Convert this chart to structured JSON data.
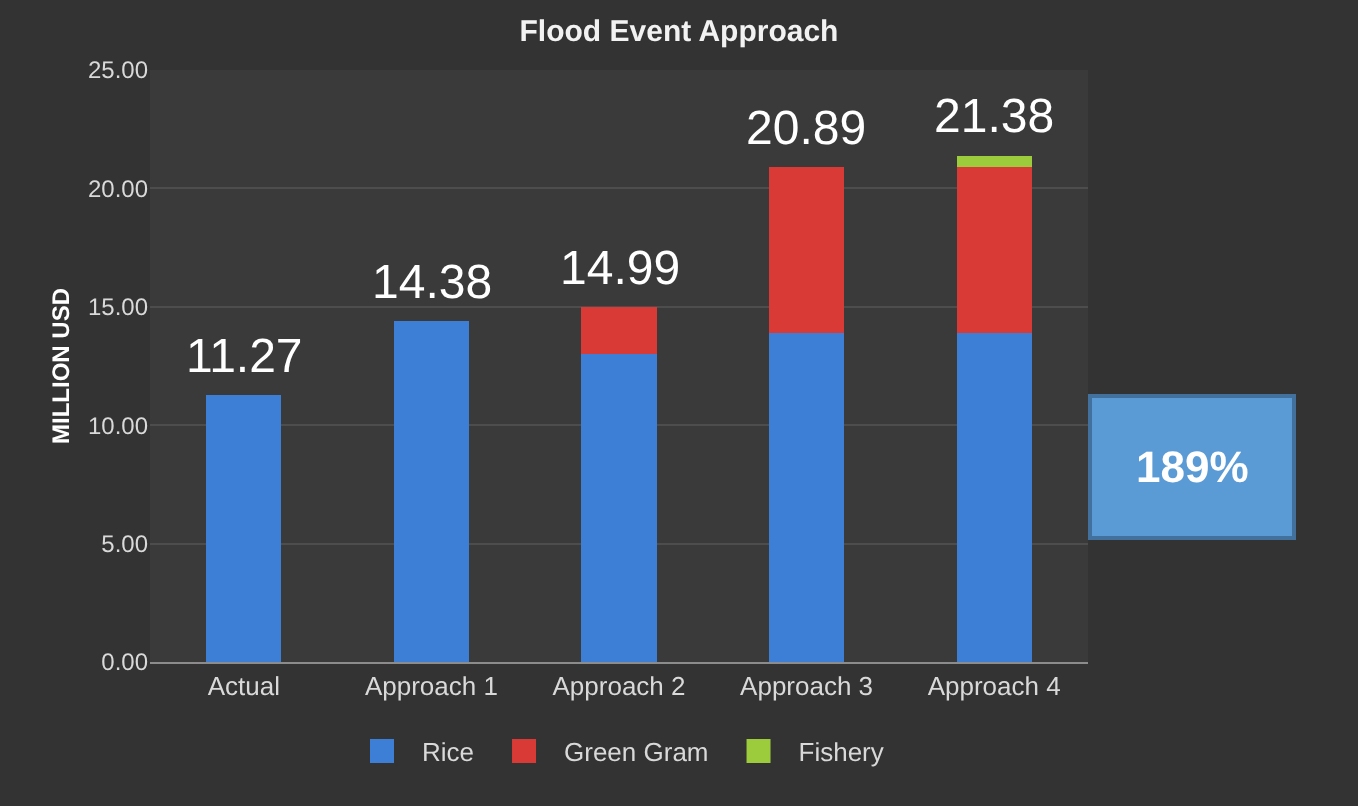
{
  "chart_data": {
    "type": "bar",
    "title": "Flood Event Approach",
    "ylabel": "MILLION USD",
    "categories": [
      "Actual",
      "Approach 1",
      "Approach 2",
      "Approach 3",
      "Approach 4"
    ],
    "stacked": true,
    "series": [
      {
        "name": "Rice",
        "color": "#3d7fd6",
        "values": [
          11.27,
          14.38,
          13.0,
          13.9,
          13.9
        ]
      },
      {
        "name": "Green Gram",
        "color": "#d93a36",
        "values": [
          null,
          null,
          1.99,
          6.99,
          6.99
        ]
      },
      {
        "name": "Fishery",
        "color": "#9ccc3c",
        "values": [
          null,
          null,
          null,
          null,
          0.49
        ]
      }
    ],
    "totals": [
      "11.27",
      "14.38",
      "14.99",
      "20.89",
      "21.38"
    ],
    "annotations": [
      "189%"
    ],
    "ylim": [
      0,
      25
    ],
    "yticks": [
      {
        "value": 0,
        "label": "0.00"
      },
      {
        "value": 5,
        "label": "5.00"
      },
      {
        "value": 10,
        "label": "10.00"
      },
      {
        "value": 15,
        "label": "15.00"
      },
      {
        "value": 20,
        "label": "20.00"
      },
      {
        "value": 25,
        "label": "25.00"
      }
    ],
    "grid": "y",
    "legend": "bottom"
  }
}
